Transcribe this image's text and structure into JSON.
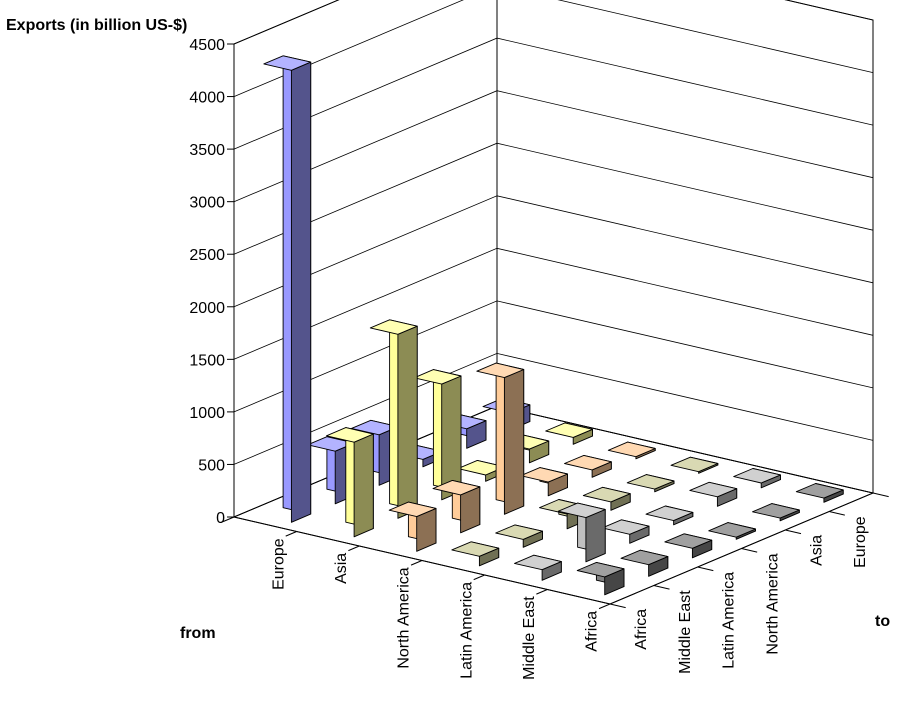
{
  "chart_data": {
    "type": "bar3d",
    "title": "",
    "ylabel": "Exports (in billion US-$)",
    "from_label": "from",
    "to_label": "to",
    "ylim": [
      0,
      4500
    ],
    "yticks": [
      0,
      500,
      1000,
      1500,
      2000,
      2500,
      3000,
      3500,
      4000,
      4500
    ],
    "from_regions": [
      "Europe",
      "Asia",
      "North America",
      "Latin America",
      "Middle East",
      "Africa"
    ],
    "to_regions": [
      "Africa",
      "Middle East",
      "Latin America",
      "North America",
      "Asia",
      "Europe"
    ],
    "colors": {
      "Europe": "#9999ff",
      "Asia": "#ffff99",
      "North America": "#ffcc99",
      "Latin America": "#cccc99",
      "Middle East": "#c0c0c0",
      "Africa": "#808080"
    },
    "values": {
      "Europe": {
        "Africa": 160,
        "Middle East": 185,
        "Latin America": 70,
        "North America": 480,
        "Asia": 500,
        "Europe": 4300
      },
      "Asia": {
        "Africa": 65,
        "Middle East": 130,
        "Latin America": 60,
        "North America": 1100,
        "Asia": 1750,
        "Europe": 900
      },
      "North America": {
        "Africa": 20,
        "Middle East": 70,
        "Latin America": 130,
        "North America": 1300,
        "Asia": 360,
        "Europe": 330
      },
      "Latin America": {
        "Africa": 15,
        "Middle East": 25,
        "Latin America": 80,
        "North America": 140,
        "Asia": 75,
        "Europe": 90
      },
      "Middle East": {
        "Africa": 45,
        "Middle East": 90,
        "Latin America": 40,
        "North America": 85,
        "Asia": 420,
        "Europe": 100
      },
      "Africa": {
        "Africa": 40,
        "Middle East": 25,
        "Latin America": 20,
        "North America": 90,
        "Asia": 110,
        "Europe": 170
      }
    }
  }
}
